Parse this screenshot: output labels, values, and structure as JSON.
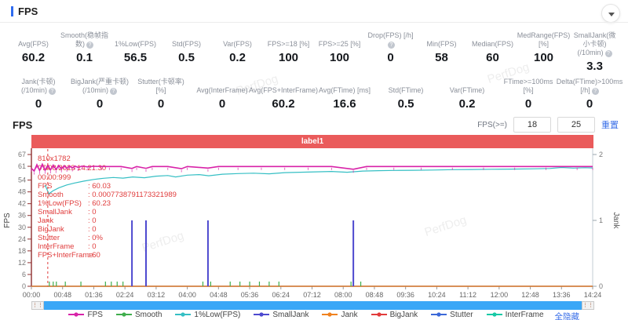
{
  "header": {
    "title": "FPS"
  },
  "stats": {
    "row1": [
      {
        "label": "Avg(FPS)",
        "value": "60.2"
      },
      {
        "label": "Smooth(稳帧指数)",
        "info": true,
        "value": "0.1"
      },
      {
        "label": "1%Low(FPS)",
        "value": "56.5"
      },
      {
        "label": "Std(FPS)",
        "value": "0.5"
      },
      {
        "label": "Var(FPS)",
        "value": "0.2"
      },
      {
        "label": "FPS>=18 [%]",
        "value": "100"
      },
      {
        "label": "FPS>=25 [%]",
        "value": "100"
      },
      {
        "label": "Drop(FPS) [/h]",
        "info": true,
        "value": "0"
      },
      {
        "label": "Min(FPS)",
        "value": "58"
      },
      {
        "label": "Median(FPS)",
        "value": "60"
      },
      {
        "label": "MedRange(FPS)[%]",
        "value": "100"
      },
      {
        "label": "SmallJank(微小卡顿)",
        "label2": "(/10min)",
        "info": true,
        "value": "3.3"
      }
    ],
    "row2": [
      {
        "label": "Jank(卡顿)",
        "label2": "(/10min)",
        "info": true,
        "value": "0"
      },
      {
        "label": "BigJank(严重卡顿)",
        "label2": "(/10min)",
        "info": true,
        "value": "0"
      },
      {
        "label": "Stutter(卡顿率) [%]",
        "value": "0"
      },
      {
        "label": "Avg(InterFrame)",
        "value": "0"
      },
      {
        "label": "Avg(FPS+InterFrame)",
        "value": "60.2"
      },
      {
        "label": "Avg(FTime) [ms]",
        "value": "16.6"
      },
      {
        "label": "Std(FTime)",
        "value": "0.5"
      },
      {
        "label": "Var(FTime)",
        "value": "0.2"
      },
      {
        "label": "FTime>=100ms [%]",
        "value": "0"
      },
      {
        "label": "Delta(FTime)>100ms [/h]",
        "info": true,
        "value": "0"
      }
    ]
  },
  "chart": {
    "section_title": "FPS",
    "threshold": {
      "label": "FPS(>=)",
      "low": "18",
      "high": "25",
      "apply_label": "重置"
    },
    "banner": {
      "label": "label1",
      "color": "#ea5b5b"
    },
    "watermark": "PerfDog",
    "hide_all_label": "全隐藏",
    "annotations": {
      "resolution": "810x1782",
      "datetime": "07/08/2023 14:21:30",
      "clock": "00:00:999",
      "color": "#e03c3c",
      "items": [
        {
          "label": "FPS",
          "value": "60.03"
        },
        {
          "label": "Smooth",
          "value": "0.0007738791173321989"
        },
        {
          "label": "1%Low(FPS)",
          "value": "60.23"
        },
        {
          "label": "SmallJank",
          "value": "0"
        },
        {
          "label": "Jank",
          "value": "0"
        },
        {
          "label": "BigJank",
          "value": "0"
        },
        {
          "label": "Stutter",
          "value": "0%"
        },
        {
          "label": "InterFrame",
          "value": "0"
        },
        {
          "label": "FPS+InterFrame",
          "value": "60"
        }
      ]
    },
    "legend": [
      {
        "name": "FPS",
        "color": "#d823a8"
      },
      {
        "name": "Smooth",
        "color": "#3fae4c"
      },
      {
        "name": "1%Low(FPS)",
        "color": "#35bfc4"
      },
      {
        "name": "SmallJank",
        "color": "#4d49cf"
      },
      {
        "name": "Jank",
        "color": "#f0821e"
      },
      {
        "name": "BigJank",
        "color": "#e23b3b"
      },
      {
        "name": "Stutter",
        "color": "#3b68d8"
      },
      {
        "name": "InterFrame",
        "color": "#17c9a5"
      }
    ]
  },
  "chart_data": {
    "type": "line",
    "title": "FPS",
    "x_ticks": [
      "00:00",
      "00:48",
      "01:36",
      "02:24",
      "03:12",
      "04:00",
      "04:48",
      "05:36",
      "06:24",
      "07:12",
      "08:00",
      "08:48",
      "09:36",
      "10:24",
      "11:12",
      "12:00",
      "12:48",
      "13:36",
      "14:24"
    ],
    "x_range_minutes": [
      0,
      14.4
    ],
    "y_left": {
      "label": "FPS",
      "ticks": [
        0,
        6,
        12,
        18,
        24,
        30,
        36,
        42,
        48,
        54,
        61,
        67
      ],
      "range": [
        0,
        67
      ]
    },
    "y_right": {
      "label": "Jank",
      "ticks": [
        0,
        1,
        2
      ],
      "range": [
        0,
        2
      ]
    },
    "cursor": {
      "time_label": "00:00:999",
      "x_minute": 0.42,
      "color": "#e03c3c"
    },
    "grid": false,
    "legend_position": "bottom",
    "series": [
      {
        "name": "InterFrame",
        "color": "#17c9a5",
        "axis": "right",
        "style": "line",
        "points": [
          [
            0,
            0
          ],
          [
            14.4,
            0
          ]
        ]
      },
      {
        "name": "Stutter",
        "color": "#3b68d8",
        "axis": "right",
        "style": "line",
        "points": [
          [
            0,
            0
          ],
          [
            14.4,
            0
          ]
        ]
      },
      {
        "name": "BigJank",
        "color": "#e23b3b",
        "axis": "right",
        "style": "line",
        "points": [
          [
            0,
            0
          ],
          [
            14.4,
            0
          ]
        ]
      },
      {
        "name": "Jank",
        "color": "#f0821e",
        "axis": "right",
        "style": "line",
        "points": [
          [
            0,
            0
          ],
          [
            14.4,
            0
          ]
        ]
      },
      {
        "name": "Smooth",
        "color": "#3fae4c",
        "axis": "left",
        "style": "bottom-tick",
        "points": [
          [
            0.46,
            0
          ],
          [
            0.56,
            0
          ],
          [
            0.64,
            0
          ],
          [
            0.87,
            0
          ],
          [
            1.27,
            0
          ],
          [
            1.9,
            0
          ],
          [
            2.05,
            0
          ],
          [
            2.2,
            0
          ],
          [
            2.35,
            0
          ],
          [
            4.4,
            0
          ],
          [
            4.6,
            0
          ],
          [
            5.1,
            0
          ],
          [
            5.35,
            0
          ],
          [
            5.6,
            0
          ],
          [
            5.85,
            0
          ],
          [
            6.1,
            0
          ],
          [
            6.35,
            0
          ],
          [
            8.2,
            0
          ],
          [
            8.45,
            0
          ]
        ]
      },
      {
        "name": "SmallJank",
        "color": "#4d49cf",
        "axis": "right",
        "style": "spike",
        "points": [
          [
            2.58,
            1
          ],
          [
            2.94,
            1
          ],
          [
            4.53,
            1
          ],
          [
            8.26,
            1
          ]
        ]
      },
      {
        "name": "1%Low(FPS)",
        "color": "#35bfc4",
        "axis": "left",
        "style": "line",
        "points": [
          [
            0.35,
            51.5
          ],
          [
            0.45,
            47
          ],
          [
            0.55,
            48.5
          ],
          [
            0.7,
            50
          ],
          [
            0.9,
            51.5
          ],
          [
            1.1,
            52.5
          ],
          [
            1.35,
            53.5
          ],
          [
            1.6,
            54.3
          ],
          [
            1.85,
            54.9
          ],
          [
            2.1,
            55.3
          ],
          [
            2.35,
            55
          ],
          [
            2.6,
            55.6
          ],
          [
            2.9,
            55.2
          ],
          [
            3.2,
            56
          ],
          [
            3.5,
            56.3
          ],
          [
            3.7,
            55.6
          ],
          [
            4,
            56.5
          ],
          [
            4.3,
            56.8
          ],
          [
            4.55,
            56.2
          ],
          [
            4.9,
            57
          ],
          [
            5.3,
            57.3
          ],
          [
            5.7,
            57.5
          ],
          [
            6.1,
            57.2
          ],
          [
            6.5,
            57.8
          ],
          [
            6.9,
            58
          ],
          [
            7.3,
            58.2
          ],
          [
            7.7,
            58.4
          ],
          [
            8.1,
            58
          ],
          [
            8.5,
            58.6
          ],
          [
            8.9,
            58.8
          ],
          [
            9.3,
            58.9
          ],
          [
            9.8,
            59
          ],
          [
            10.3,
            59.1
          ],
          [
            10.8,
            59.3
          ],
          [
            11.3,
            59.4
          ],
          [
            11.8,
            59.5
          ],
          [
            12.3,
            59.6
          ],
          [
            12.8,
            59.7
          ],
          [
            13.3,
            59.9
          ],
          [
            13.6,
            60.4
          ],
          [
            13.9,
            60.1
          ],
          [
            14.2,
            60.3
          ],
          [
            14.4,
            60.2
          ]
        ]
      },
      {
        "name": "FPS",
        "color": "#d823a8",
        "axis": "left",
        "style": "line-fuzzy",
        "points": [
          [
            0,
            60
          ],
          [
            0.07,
            58.6
          ],
          [
            0.14,
            61.8
          ],
          [
            0.21,
            58.9
          ],
          [
            0.28,
            62.1
          ],
          [
            0.35,
            59
          ],
          [
            0.42,
            61.7
          ],
          [
            0.49,
            59.2
          ],
          [
            0.56,
            61.6
          ],
          [
            0.63,
            59.4
          ],
          [
            0.7,
            61.4
          ],
          [
            0.77,
            59.7
          ],
          [
            0.84,
            61.3
          ],
          [
            0.91,
            60
          ],
          [
            0.98,
            61.2
          ],
          [
            1.05,
            60.2
          ],
          [
            1.12,
            61.1
          ],
          [
            1.2,
            60.4
          ],
          [
            1.3,
            61.1
          ],
          [
            1.45,
            60.7
          ],
          [
            1.6,
            61
          ],
          [
            1.8,
            60.9
          ],
          [
            2,
            60.9
          ],
          [
            2.3,
            60.9
          ],
          [
            2.58,
            59.9
          ],
          [
            2.7,
            60.9
          ],
          [
            2.94,
            60
          ],
          [
            3.1,
            60.9
          ],
          [
            3.5,
            60.9
          ],
          [
            3.85,
            59.8
          ],
          [
            4,
            60.9
          ],
          [
            4.53,
            60.1
          ],
          [
            4.8,
            60.9
          ],
          [
            5.3,
            60.9
          ],
          [
            5.9,
            60.9
          ],
          [
            6.5,
            60.9
          ],
          [
            7.1,
            60.9
          ],
          [
            7.7,
            60.9
          ],
          [
            8.26,
            59.5
          ],
          [
            8.6,
            60.9
          ],
          [
            9.3,
            60.9
          ],
          [
            10,
            60.9
          ],
          [
            10.8,
            60.9
          ],
          [
            11.6,
            60.9
          ],
          [
            12.4,
            60.9
          ],
          [
            13.2,
            60.9
          ],
          [
            14,
            60.9
          ],
          [
            14.4,
            60.9
          ]
        ]
      }
    ]
  }
}
